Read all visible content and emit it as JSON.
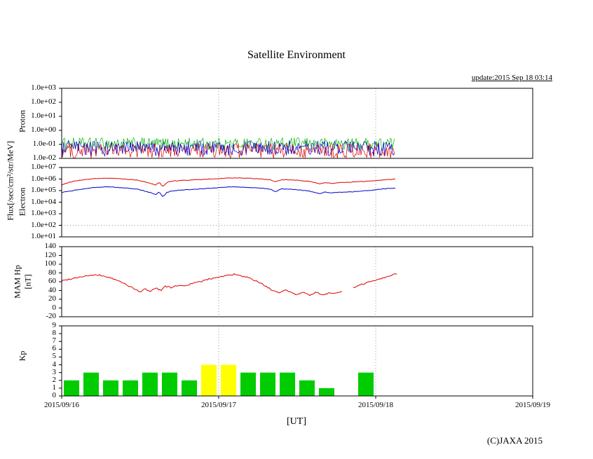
{
  "title": "Satellite Environment",
  "update_text": "update:2015 Sep 18 03:14",
  "copyright": "(C)JAXA 2015",
  "xaxis": {
    "label": "[UT]",
    "tick_labels": [
      "2015/09/16",
      "2015/09/17",
      "2015/09/18",
      "2015/09/19"
    ]
  },
  "axis_labels": {
    "flux": "Flux[/sec/cm²/str/MeV]",
    "proton": "Proton",
    "electron": "Electron",
    "mam": "MAM Hp",
    "mam_unit": "[nT]",
    "kp": "Kp"
  },
  "grid": {
    "vertical_days": [
      1,
      2
    ]
  },
  "chart_data": [
    {
      "id": "proton",
      "type": "noise",
      "title": "Proton flux",
      "yscale": "log",
      "ylim": [
        0.01,
        1000
      ],
      "yticks": [
        "1.0e+03",
        "1.0e+02",
        "1.0e+01",
        "1.0e+00",
        "1.0e-01",
        "1.0e-02"
      ],
      "x_range_days": [
        0,
        2.125
      ],
      "hlines": [],
      "series": [
        {
          "name": "proton-green",
          "color": "#00bb00",
          "band": [
            0.04,
            0.3
          ]
        },
        {
          "name": "proton-red",
          "color": "#dd0000",
          "band": [
            0.01,
            0.12
          ]
        },
        {
          "name": "proton-blue",
          "color": "#0000cc",
          "band": [
            0.015,
            0.18
          ]
        }
      ]
    },
    {
      "id": "electron",
      "type": "line",
      "title": "Electron flux",
      "yscale": "log",
      "ylim": [
        10,
        10000000.0
      ],
      "yticks": [
        "1.0e+07",
        "1.0e+06",
        "1.0e+05",
        "1.0e+04",
        "1.0e+03",
        "1.0e+02",
        "1.0e+01"
      ],
      "hlines": [
        100
      ],
      "series": [
        {
          "name": "electron-red",
          "color": "#dd0000",
          "points": [
            [
              0.0,
              300000.0
            ],
            [
              0.05,
              550000.0
            ],
            [
              0.1,
              750000.0
            ],
            [
              0.15,
              900000.0
            ],
            [
              0.2,
              1050000.0
            ],
            [
              0.28,
              1200000.0
            ],
            [
              0.35,
              1100000.0
            ],
            [
              0.42,
              950000.0
            ],
            [
              0.48,
              800000.0
            ],
            [
              0.52,
              600000.0
            ],
            [
              0.56,
              450000.0
            ],
            [
              0.6,
              300000.0
            ],
            [
              0.62,
              550000.0
            ],
            [
              0.645,
              220000.0
            ],
            [
              0.67,
              500000.0
            ],
            [
              0.7,
              650000.0
            ],
            [
              0.75,
              750000.0
            ],
            [
              0.8,
              800000.0
            ],
            [
              0.85,
              850000.0
            ],
            [
              0.92,
              950000.0
            ],
            [
              1.0,
              1100000.0
            ],
            [
              1.08,
              1250000.0
            ],
            [
              1.15,
              1200000.0
            ],
            [
              1.22,
              1100000.0
            ],
            [
              1.28,
              1000000.0
            ],
            [
              1.33,
              850000.0
            ],
            [
              1.36,
              550000.0
            ],
            [
              1.4,
              900000.0
            ],
            [
              1.45,
              850000.0
            ],
            [
              1.5,
              800000.0
            ],
            [
              1.55,
              700000.0
            ],
            [
              1.6,
              550000.0
            ],
            [
              1.64,
              380000.0
            ],
            [
              1.68,
              500000.0
            ],
            [
              1.72,
              420000.0
            ],
            [
              1.76,
              480000.0
            ],
            [
              1.8,
              500000.0
            ],
            [
              1.85,
              550000.0
            ],
            [
              1.9,
              600000.0
            ],
            [
              1.95,
              650000.0
            ],
            [
              2.0,
              750000.0
            ],
            [
              2.05,
              850000.0
            ],
            [
              2.1,
              950000.0
            ],
            [
              2.125,
              1000000.0
            ]
          ]
        },
        {
          "name": "electron-blue",
          "color": "#0000cc",
          "points": [
            [
              0.0,
              70000.0
            ],
            [
              0.05,
              90000.0
            ],
            [
              0.1,
              120000.0
            ],
            [
              0.15,
              150000.0
            ],
            [
              0.2,
              180000.0
            ],
            [
              0.28,
              210000.0
            ],
            [
              0.35,
              190000.0
            ],
            [
              0.42,
              160000.0
            ],
            [
              0.48,
              130000.0
            ],
            [
              0.52,
              100000.0
            ],
            [
              0.56,
              70000.0
            ],
            [
              0.6,
              45000.0
            ],
            [
              0.62,
              80000.0
            ],
            [
              0.645,
              30000.0
            ],
            [
              0.67,
              70000.0
            ],
            [
              0.7,
              90000.0
            ],
            [
              0.75,
              110000.0
            ],
            [
              0.8,
              120000.0
            ],
            [
              0.85,
              130000.0
            ],
            [
              0.92,
              150000.0
            ],
            [
              1.0,
              180000.0
            ],
            [
              1.08,
              210000.0
            ],
            [
              1.15,
              200000.0
            ],
            [
              1.22,
              180000.0
            ],
            [
              1.28,
              160000.0
            ],
            [
              1.33,
              130000.0
            ],
            [
              1.36,
              80000.0
            ],
            [
              1.4,
              140000.0
            ],
            [
              1.45,
              130000.0
            ],
            [
              1.5,
              120000.0
            ],
            [
              1.55,
              100000.0
            ],
            [
              1.6,
              80000.0
            ],
            [
              1.64,
              55000.0
            ],
            [
              1.68,
              75000.0
            ],
            [
              1.72,
              65000.0
            ],
            [
              1.76,
              70000.0
            ],
            [
              1.8,
              75000.0
            ],
            [
              1.85,
              80000.0
            ],
            [
              1.9,
              90000.0
            ],
            [
              1.95,
              100000.0
            ],
            [
              2.0,
              120000.0
            ],
            [
              2.05,
              140000.0
            ],
            [
              2.1,
              160000.0
            ],
            [
              2.125,
              170000.0
            ]
          ]
        }
      ]
    },
    {
      "id": "mam-hp",
      "type": "line",
      "title": "MAM Hp [nT]",
      "yscale": "linear",
      "ylim": [
        -20,
        140
      ],
      "yticks": [
        "140",
        "120",
        "100",
        "80",
        "60",
        "40",
        "20",
        "0",
        "-20"
      ],
      "hlines": [],
      "series": [
        {
          "name": "mam-hp-red",
          "color": "#dd0000",
          "gaps": [
            [
              1.79,
              1.855
            ]
          ],
          "points": [
            [
              0.0,
              62
            ],
            [
              0.05,
              66
            ],
            [
              0.1,
              70
            ],
            [
              0.17,
              74
            ],
            [
              0.24,
              75
            ],
            [
              0.3,
              70
            ],
            [
              0.36,
              62
            ],
            [
              0.42,
              52
            ],
            [
              0.46,
              44
            ],
            [
              0.5,
              36
            ],
            [
              0.53,
              44
            ],
            [
              0.56,
              38
            ],
            [
              0.6,
              46
            ],
            [
              0.63,
              40
            ],
            [
              0.66,
              50
            ],
            [
              0.7,
              46
            ],
            [
              0.74,
              52
            ],
            [
              0.78,
              50
            ],
            [
              0.82,
              55
            ],
            [
              0.86,
              58
            ],
            [
              0.9,
              62
            ],
            [
              0.95,
              67
            ],
            [
              1.0,
              71
            ],
            [
              1.05,
              74
            ],
            [
              1.1,
              77
            ],
            [
              1.14,
              73
            ],
            [
              1.18,
              70
            ],
            [
              1.22,
              64
            ],
            [
              1.26,
              58
            ],
            [
              1.3,
              50
            ],
            [
              1.34,
              40
            ],
            [
              1.38,
              34
            ],
            [
              1.42,
              42
            ],
            [
              1.46,
              36
            ],
            [
              1.5,
              30
            ],
            [
              1.54,
              38
            ],
            [
              1.58,
              28
            ],
            [
              1.62,
              36
            ],
            [
              1.66,
              30
            ],
            [
              1.7,
              34
            ],
            [
              1.74,
              34
            ],
            [
              1.78,
              36
            ],
            [
              1.86,
              46
            ],
            [
              1.92,
              55
            ],
            [
              1.98,
              62
            ],
            [
              2.04,
              68
            ],
            [
              2.08,
              72
            ],
            [
              2.12,
              78
            ],
            [
              2.14,
              76
            ]
          ]
        }
      ]
    },
    {
      "id": "kp",
      "type": "bar",
      "title": "Kp index",
      "yscale": "linear",
      "ylim": [
        0,
        9
      ],
      "yticks": [
        "9",
        "8",
        "7",
        "6",
        "5",
        "4",
        "3",
        "2",
        "1",
        "0"
      ],
      "hlines": [],
      "interval_hours": 3,
      "yellow_threshold": 4,
      "colors": {
        "green": "#00cc00",
        "yellow": "#ffff00"
      },
      "values": [
        2,
        3,
        2,
        2,
        3,
        3,
        2,
        4,
        4,
        3,
        3,
        3,
        2,
        1,
        0,
        3
      ]
    }
  ]
}
